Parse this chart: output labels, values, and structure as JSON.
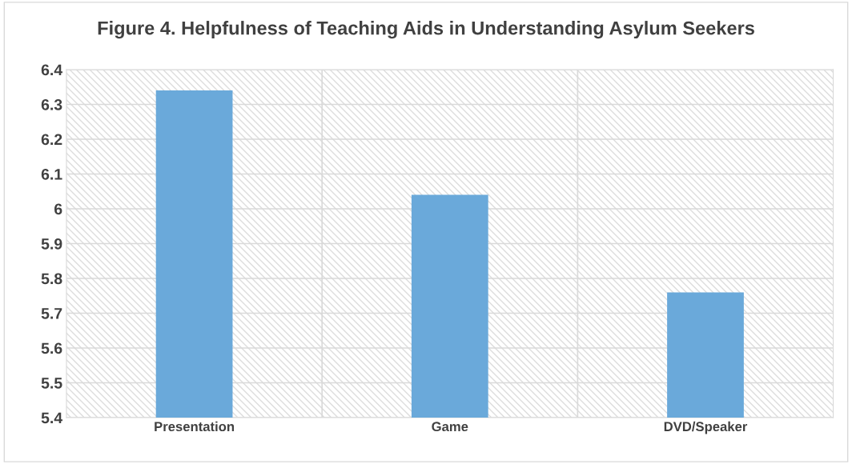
{
  "chart_data": {
    "type": "bar",
    "title": "Figure 4. Helpfulness of Teaching Aids in Understanding Asylum Seekers",
    "categories": [
      "Presentation",
      "Game",
      "DVD/Speaker"
    ],
    "values": [
      6.34,
      6.04,
      5.76
    ],
    "color": "#6aa9da",
    "ylim": [
      5.4,
      6.4
    ],
    "yticks": [
      {
        "value": 5.4,
        "label": "5.4"
      },
      {
        "value": 5.5,
        "label": "5.5"
      },
      {
        "value": 5.6,
        "label": "5.6"
      },
      {
        "value": 5.7,
        "label": "5.7"
      },
      {
        "value": 5.8,
        "label": "5.8"
      },
      {
        "value": 5.9,
        "label": "5.9"
      },
      {
        "value": 6.0,
        "label": "6"
      },
      {
        "value": 6.1,
        "label": "6.1"
      },
      {
        "value": 6.2,
        "label": "6.2"
      },
      {
        "value": 6.3,
        "label": "6.3"
      },
      {
        "value": 6.4,
        "label": "6.4"
      }
    ],
    "grid": true
  }
}
